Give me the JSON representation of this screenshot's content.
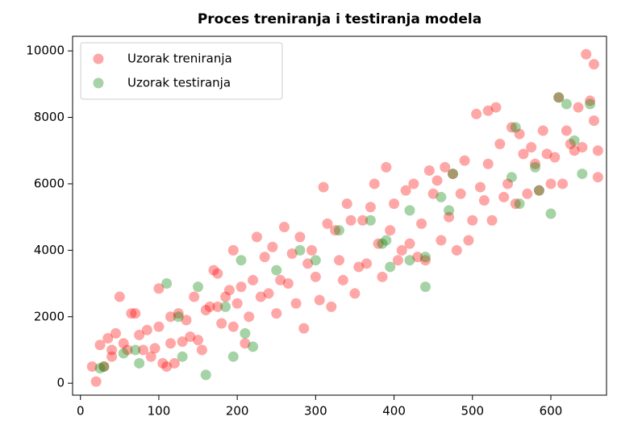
{
  "chart_data": {
    "type": "scatter",
    "title": "Proces treniranja i testiranja modela",
    "xlim": [
      -10,
      671
    ],
    "ylim": [
      -360,
      10440
    ],
    "xticks": [
      0,
      100,
      200,
      300,
      400,
      500,
      600
    ],
    "yticks": [
      0,
      2000,
      4000,
      6000,
      8000,
      10000
    ],
    "legend": "upper left",
    "alpha": 0.35,
    "series": [
      {
        "name": "Uzorak treniranja",
        "color": "#ff0000",
        "x": [
          20,
          15,
          25,
          30,
          35,
          40,
          45,
          40,
          50,
          55,
          60,
          65,
          70,
          75,
          80,
          85,
          90,
          95,
          100,
          100,
          105,
          110,
          115,
          115,
          120,
          125,
          130,
          135,
          140,
          145,
          150,
          155,
          160,
          165,
          170,
          175,
          175,
          180,
          185,
          190,
          195,
          195,
          200,
          205,
          210,
          215,
          220,
          225,
          230,
          235,
          240,
          245,
          250,
          255,
          260,
          265,
          270,
          275,
          280,
          285,
          290,
          295,
          300,
          305,
          310,
          315,
          320,
          325,
          330,
          335,
          340,
          345,
          350,
          355,
          360,
          365,
          370,
          375,
          380,
          385,
          390,
          395,
          400,
          405,
          410,
          415,
          420,
          425,
          430,
          435,
          440,
          445,
          450,
          455,
          460,
          465,
          470,
          475,
          480,
          485,
          490,
          495,
          500,
          505,
          510,
          515,
          520,
          520,
          525,
          530,
          535,
          540,
          545,
          550,
          555,
          560,
          565,
          570,
          575,
          580,
          585,
          590,
          595,
          600,
          605,
          610,
          615,
          620,
          625,
          630,
          635,
          640,
          645,
          650,
          655,
          655,
          660,
          660
        ],
        "values": [
          50,
          500,
          1150,
          500,
          1350,
          1000,
          1500,
          800,
          2600,
          1200,
          1000,
          2100,
          2100,
          1450,
          1000,
          1600,
          800,
          1050,
          2850,
          1700,
          600,
          500,
          1200,
          2000,
          600,
          2100,
          1250,
          1900,
          1400,
          2600,
          1300,
          1000,
          2200,
          2300,
          3400,
          3300,
          2300,
          1800,
          2600,
          2800,
          4000,
          1700,
          2400,
          2900,
          1200,
          2000,
          3100,
          4400,
          2600,
          3800,
          2700,
          4100,
          2100,
          3100,
          4700,
          3000,
          3900,
          2400,
          4400,
          1650,
          3600,
          4000,
          3200,
          2500,
          5900,
          4800,
          2300,
          4600,
          3700,
          3100,
          5400,
          4900,
          2700,
          3500,
          4900,
          3600,
          5300,
          6000,
          4200,
          3200,
          6500,
          4600,
          5400,
          3700,
          4000,
          5800,
          4200,
          6000,
          3800,
          4800,
          3700,
          6400,
          5700,
          6100,
          4300,
          6500,
          5000,
          6300,
          4000,
          5700,
          6700,
          4300,
          4900,
          8100,
          5900,
          5500,
          6600,
          8200,
          4900,
          8300,
          7200,
          5600,
          6000,
          7700,
          5400,
          7500,
          6900,
          5700,
          7100,
          6600,
          5800,
          7600,
          6900,
          6000,
          6800,
          8600,
          6000,
          7600,
          7200,
          7000,
          8300,
          7100,
          9900,
          8500,
          7900,
          9600,
          7000,
          6200
        ]
      },
      {
        "name": "Uzorak testiranja",
        "color": "#008000",
        "x": [
          25,
          30,
          55,
          70,
          75,
          110,
          125,
          130,
          150,
          160,
          185,
          195,
          205,
          210,
          220,
          250,
          280,
          300,
          330,
          370,
          385,
          390,
          395,
          420,
          420,
          440,
          440,
          460,
          470,
          475,
          550,
          555,
          560,
          580,
          585,
          600,
          610,
          620,
          630,
          640,
          650
        ],
        "values": [
          450,
          500,
          900,
          1000,
          600,
          3000,
          2000,
          800,
          2900,
          250,
          2300,
          800,
          3700,
          1500,
          1100,
          3400,
          4000,
          3700,
          4600,
          4900,
          4200,
          4300,
          3500,
          5200,
          3700,
          3800,
          2900,
          5600,
          5200,
          6300,
          6200,
          7700,
          5400,
          6500,
          5800,
          5100,
          8600,
          8400,
          7300,
          6300,
          8400
        ]
      }
    ]
  }
}
